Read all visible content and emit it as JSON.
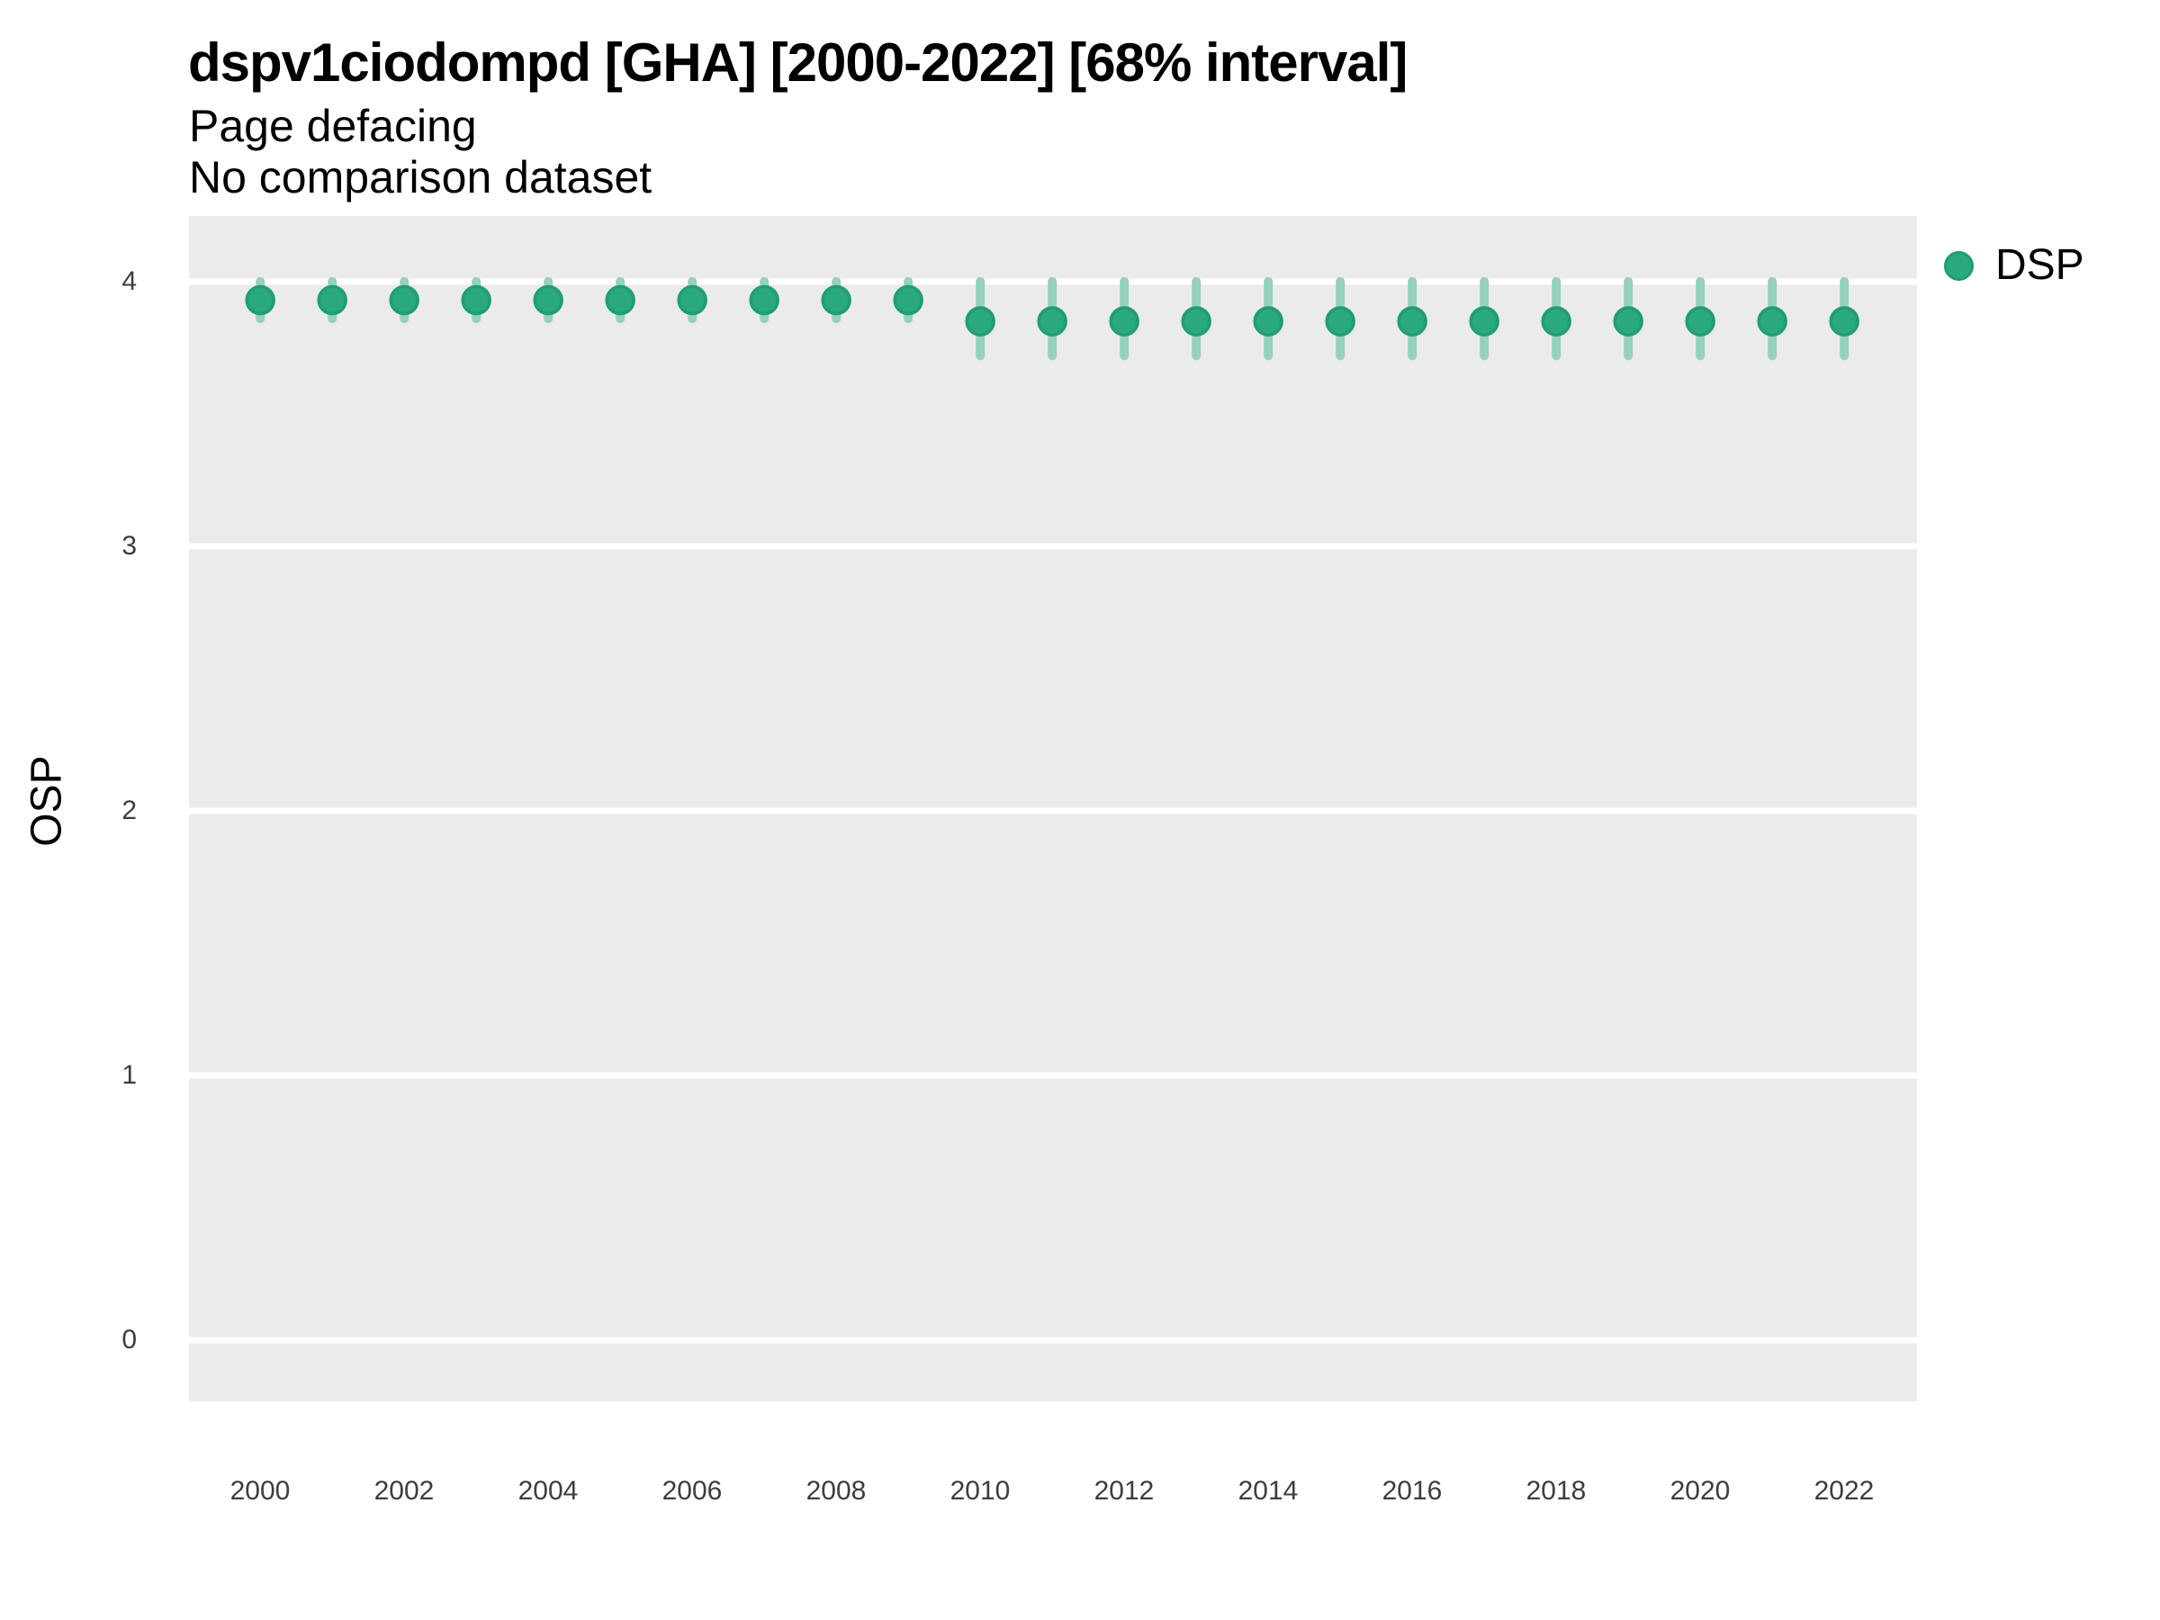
{
  "figure": {
    "title": "dspv1ciodompd [GHA] [2000-2022] [68% interval]",
    "subtitle": "Page defacing",
    "caption": "No comparison dataset"
  },
  "legend": {
    "label": "DSP"
  },
  "axes": {
    "y_title": "OSP",
    "x_title": ""
  },
  "colors": {
    "panel_bg": "#ebebeb",
    "grid": "#ffffff",
    "point_fill": "#2aa87e",
    "point_stroke": "#1f9e73",
    "interval_bar": "#94d3b9",
    "axis_text": "#3d3d3d",
    "text": "#000000"
  },
  "chart_data": {
    "type": "scatter",
    "subtype": "pointrange",
    "title": "dspv1ciodompd [GHA] [2000-2022] [68% interval]",
    "subtitle": "Page defacing",
    "note": "No comparison dataset",
    "xlabel": "",
    "ylabel": "OSP",
    "interval_level": "68%",
    "legend_position": "right",
    "grid": "major-horizontal-only",
    "x": [
      2000,
      2001,
      2002,
      2003,
      2004,
      2005,
      2006,
      2007,
      2008,
      2009,
      2010,
      2011,
      2012,
      2013,
      2014,
      2015,
      2016,
      2017,
      2018,
      2019,
      2020,
      2021,
      2022
    ],
    "series": [
      {
        "name": "DSP",
        "mean": [
          3.93,
          3.93,
          3.93,
          3.93,
          3.93,
          3.93,
          3.93,
          3.93,
          3.93,
          3.93,
          3.85,
          3.85,
          3.85,
          3.85,
          3.85,
          3.85,
          3.85,
          3.85,
          3.85,
          3.85,
          3.85,
          3.85,
          3.85
        ],
        "lower": [
          3.86,
          3.86,
          3.86,
          3.86,
          3.86,
          3.86,
          3.86,
          3.86,
          3.86,
          3.86,
          3.72,
          3.72,
          3.72,
          3.72,
          3.72,
          3.72,
          3.72,
          3.72,
          3.72,
          3.72,
          3.72,
          3.72,
          3.72
        ],
        "upper": [
          4.0,
          4.0,
          4.0,
          4.0,
          4.0,
          4.0,
          4.0,
          4.0,
          4.0,
          4.0,
          4.0,
          4.0,
          4.0,
          4.0,
          4.0,
          4.0,
          4.0,
          4.0,
          4.0,
          4.0,
          4.0,
          4.0,
          4.0
        ]
      }
    ],
    "x_ticks": [
      2000,
      2002,
      2004,
      2006,
      2008,
      2010,
      2012,
      2014,
      2016,
      2018,
      2020,
      2022
    ],
    "y_ticks": [
      4,
      3,
      2,
      1,
      0
    ],
    "xlim": [
      1999.01,
      2023.01
    ],
    "ylim": [
      -0.231,
      4.248
    ]
  }
}
